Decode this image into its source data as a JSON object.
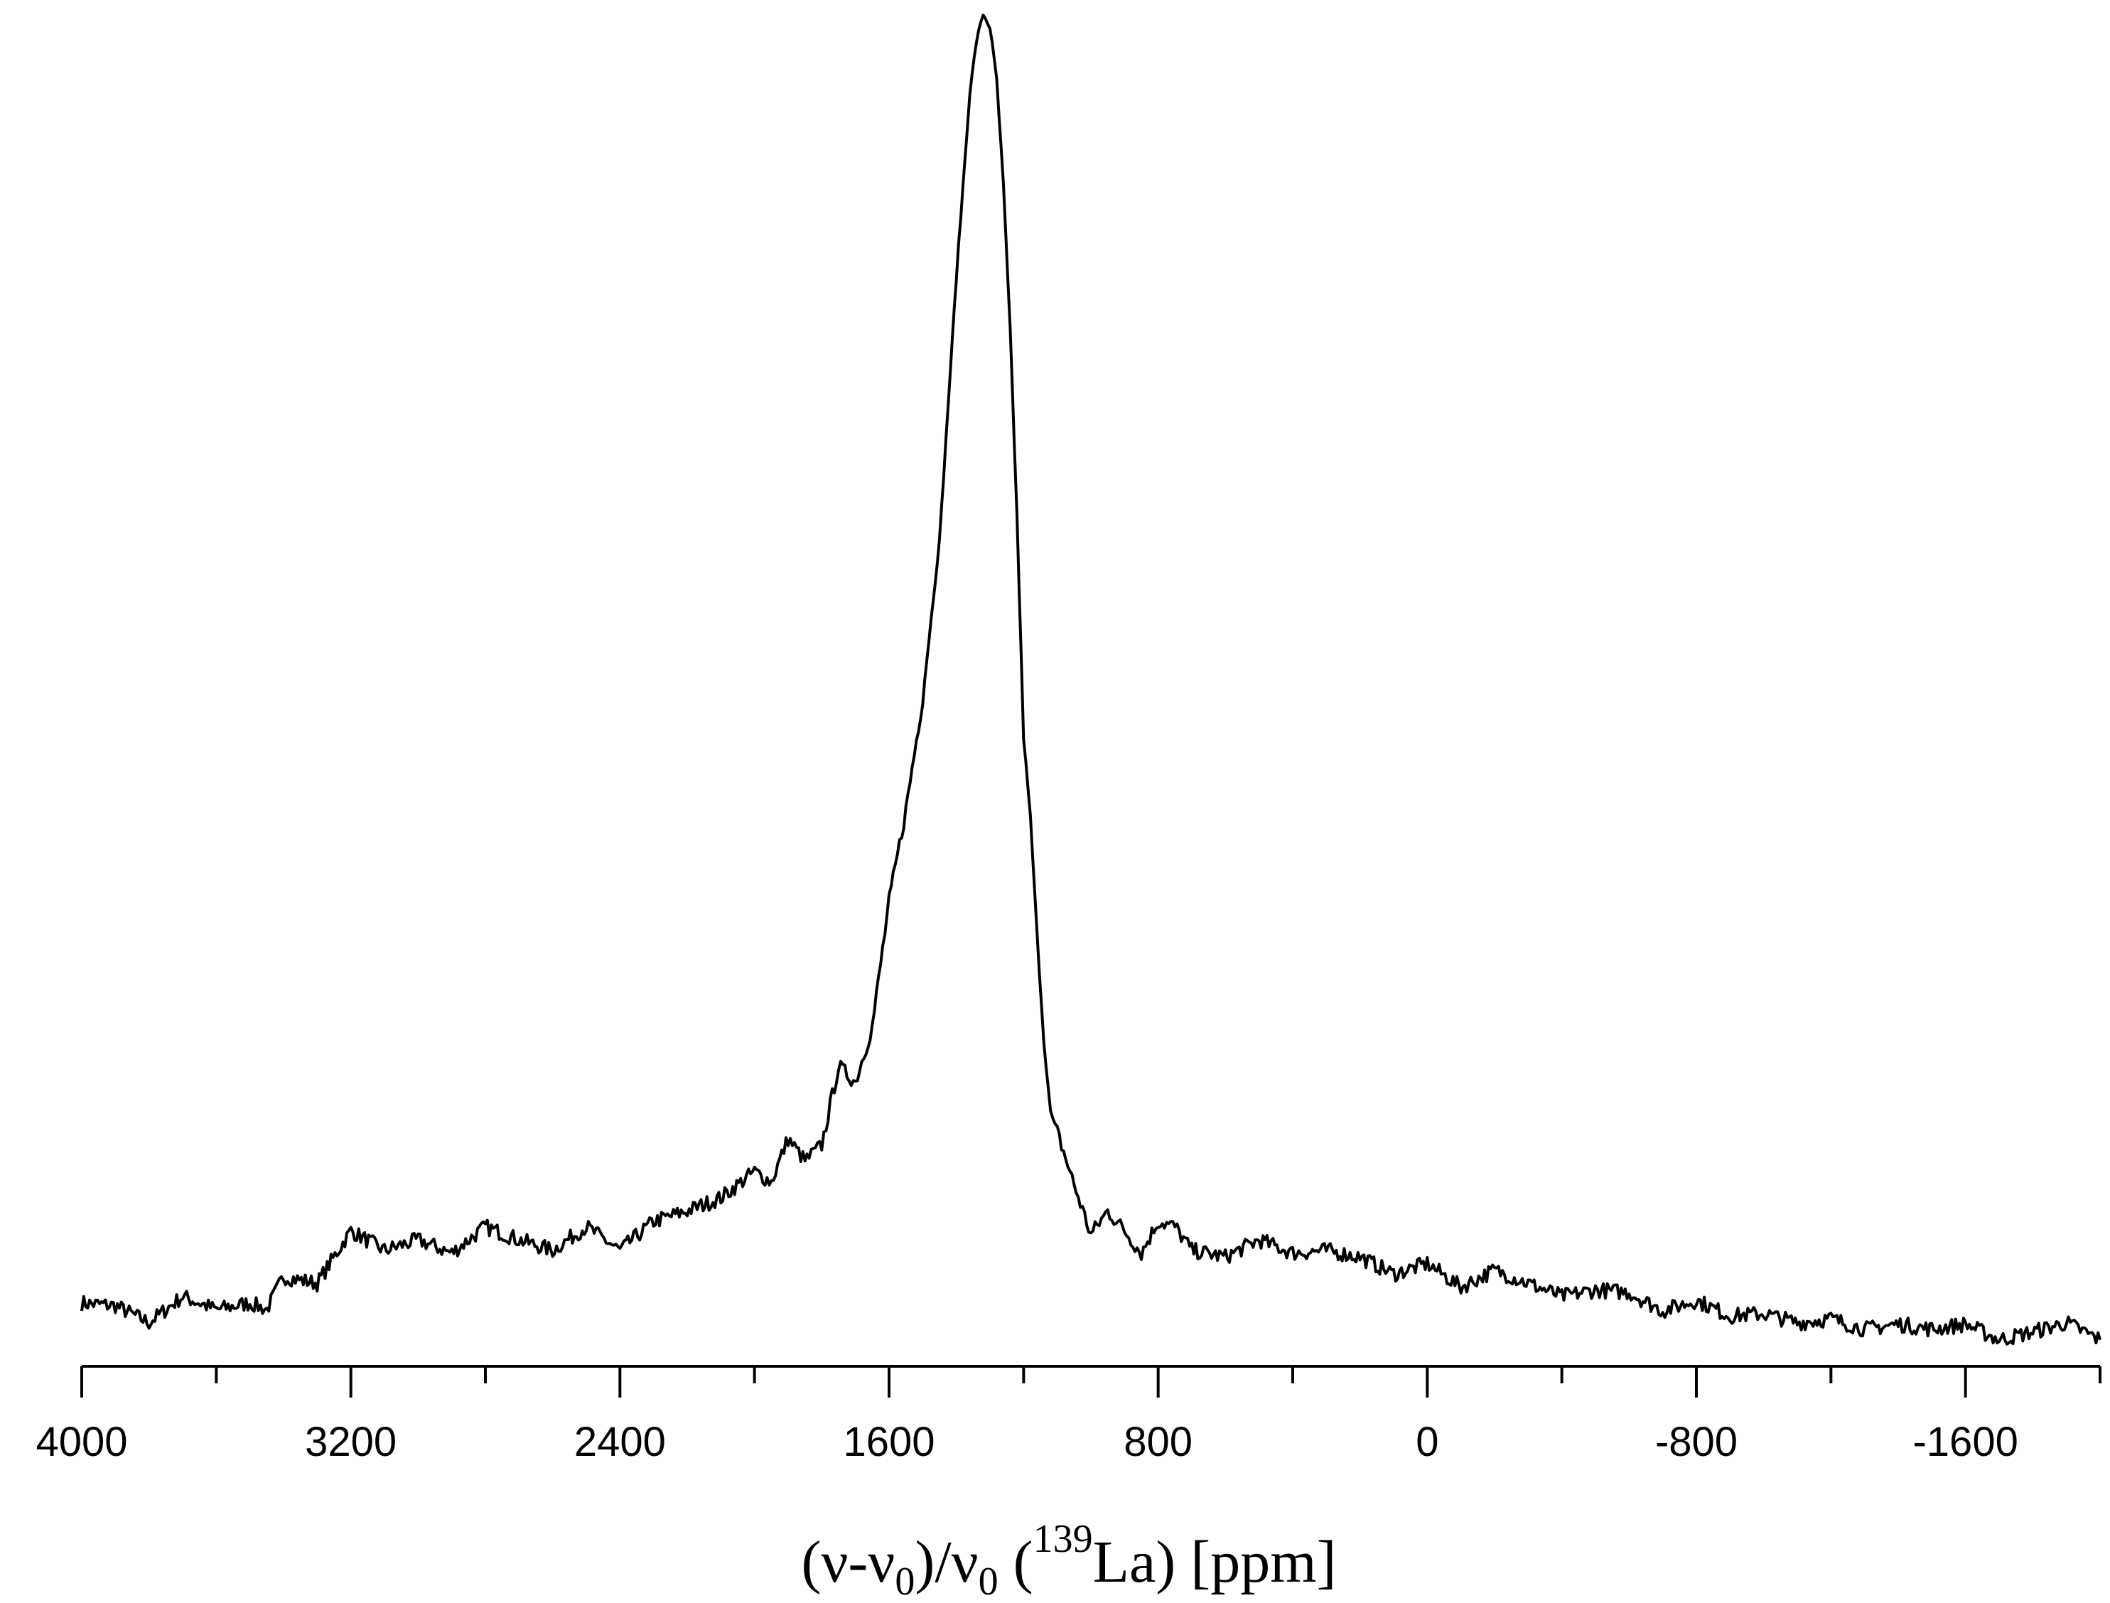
{
  "chart_data": {
    "type": "line",
    "title": "",
    "xlabel": {
      "open": "(ν-ν",
      "sub1": "0",
      "mid1": ")/ν",
      "sub2": "0",
      "mid2": " (",
      "sup": "139",
      "tail": "La) [ppm]"
    },
    "ylabel": "",
    "x_reversed": true,
    "xlim": [
      4000,
      -2000
    ],
    "ylim": [
      0,
      1.0
    ],
    "x_ticks_major": [
      4000,
      3200,
      2400,
      1600,
      800,
      0,
      -800,
      -1600
    ],
    "x_tick_labels": [
      "4000",
      "3200",
      "2400",
      "1600",
      "800",
      "0",
      "-800",
      "-1600"
    ],
    "x_ticks_minor": [
      3600,
      2800,
      2000,
      1200,
      400,
      -400,
      -1200
    ],
    "y_axis_shown": false,
    "grid": false,
    "line_color": "#000000",
    "series": [
      {
        "x": [
          4000,
          3900,
          3800,
          3700,
          3600,
          3500,
          3450,
          3400,
          3300,
          3200,
          3100,
          3000,
          2900,
          2800,
          2700,
          2600,
          2500,
          2400,
          2300,
          2200,
          2100,
          2000,
          1950,
          1900,
          1850,
          1800,
          1750,
          1700,
          1650,
          1600,
          1550,
          1500,
          1450,
          1400,
          1380,
          1360,
          1340,
          1320,
          1300,
          1280,
          1260,
          1240,
          1220,
          1200,
          1180,
          1160,
          1140,
          1120,
          1100,
          1050,
          1000,
          950,
          900,
          850,
          800,
          750,
          700,
          600,
          500,
          400,
          300,
          200,
          100,
          0,
          -100,
          -200,
          -300,
          -400,
          -500,
          -600,
          -700,
          -800,
          -900,
          -1000,
          -1100,
          -1200,
          -1300,
          -1400,
          -1500,
          -1600,
          -1700,
          -1800,
          -1900,
          -2000
        ],
        "y": [
          0.02,
          0.018,
          0.005,
          0.025,
          0.015,
          0.02,
          0.015,
          0.04,
          0.035,
          0.075,
          0.06,
          0.068,
          0.058,
          0.078,
          0.068,
          0.06,
          0.078,
          0.06,
          0.082,
          0.09,
          0.1,
          0.12,
          0.112,
          0.145,
          0.128,
          0.14,
          0.2,
          0.188,
          0.23,
          0.325,
          0.395,
          0.48,
          0.6,
          0.8,
          0.87,
          0.94,
          0.98,
          1.0,
          0.99,
          0.95,
          0.87,
          0.76,
          0.62,
          0.45,
          0.39,
          0.3,
          0.22,
          0.165,
          0.15,
          0.11,
          0.072,
          0.09,
          0.075,
          0.058,
          0.082,
          0.078,
          0.06,
          0.055,
          0.068,
          0.058,
          0.06,
          0.055,
          0.042,
          0.05,
          0.032,
          0.045,
          0.035,
          0.025,
          0.03,
          0.028,
          0.014,
          0.022,
          0.01,
          0.012,
          0.005,
          0.008,
          0.0,
          0.004,
          0.0,
          0.004,
          -0.008,
          -0.002,
          0.005,
          -0.008
        ]
      }
    ]
  }
}
